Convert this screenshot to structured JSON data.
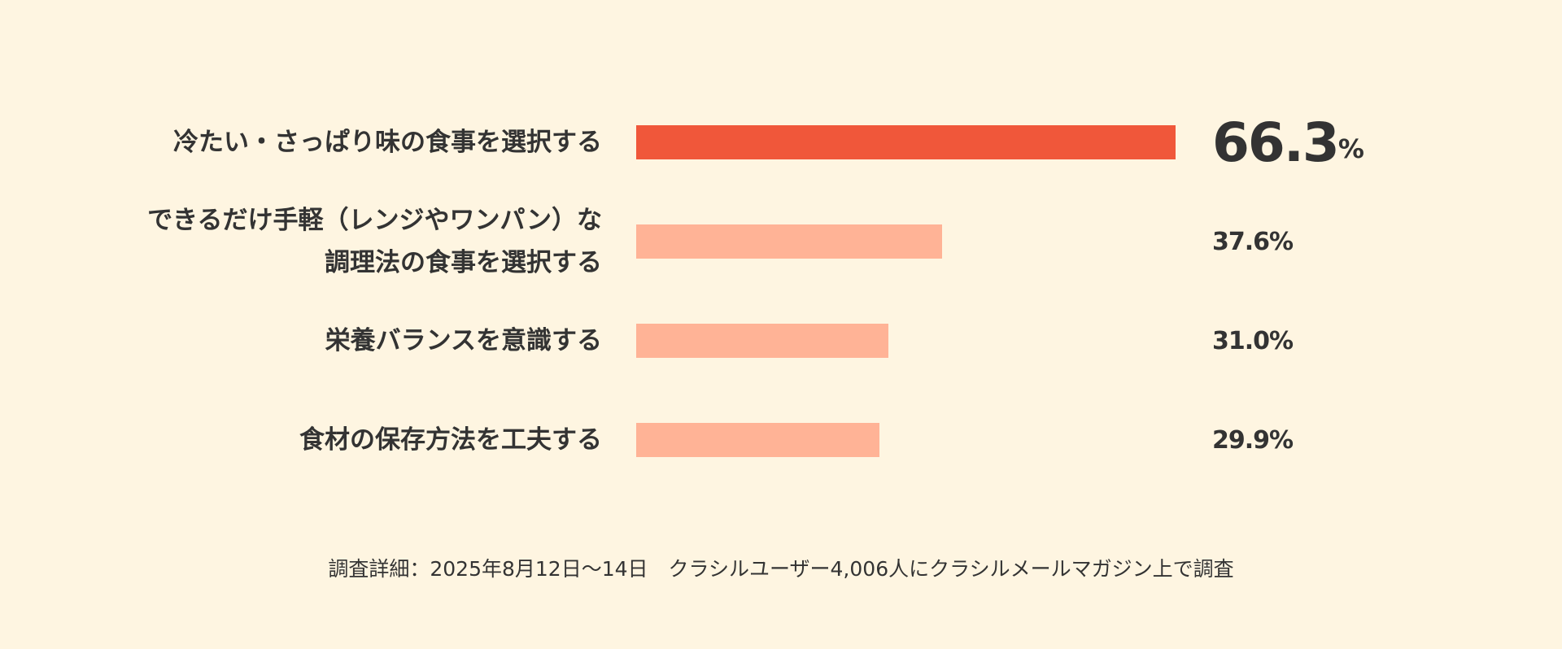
{
  "chart_data": {
    "type": "bar",
    "orientation": "horizontal",
    "categories": [
      "冷たい・さっぱり味の食事を選択する",
      "できるだけ手軽（レンジやワンパン）な\n調理法の食事を選択する",
      "栄養バランスを意識する",
      "食材の保存方法を工夫する"
    ],
    "values": [
      66.3,
      37.6,
      31.0,
      29.9
    ],
    "value_labels": [
      "66.3",
      "37.6",
      "31.0",
      "29.9"
    ],
    "unit": "%",
    "highlight_index": 0,
    "colors": {
      "highlight": "#f0573a",
      "default": "#ffb396",
      "background": "#fef5e1",
      "text": "#333333"
    },
    "xlim": [
      0,
      100
    ],
    "grid": false,
    "legend": "none"
  },
  "footnote": "調査詳細：2025年8月12日〜14日　クラシルユーザー4,006人にクラシルメールマガジン上で調査"
}
